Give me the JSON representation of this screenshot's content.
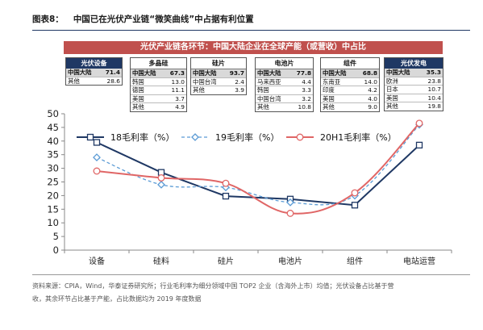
{
  "figure": {
    "label": "图表8：",
    "title": "中国已在光伏产业链“微笑曲线”中占据有利位置"
  },
  "banner": "光伏产业链各环节：中国大陆企业在全球产能（或营收）中占比",
  "share_boxes": [
    {
      "header": "光伏设备",
      "header_style": "blue",
      "rows": [
        {
          "name": "中国大陆",
          "value": "71.4"
        },
        {
          "name": "其他",
          "value": "28.6"
        }
      ]
    },
    {
      "header": "多晶硅",
      "header_style": "plain",
      "rows": [
        {
          "name": "中国大陆",
          "value": "67.3"
        },
        {
          "name": "韩国",
          "value": "13.0"
        },
        {
          "name": "德国",
          "value": "11.1"
        },
        {
          "name": "美国",
          "value": "3.7"
        },
        {
          "name": "其他",
          "value": "4.9"
        }
      ]
    },
    {
      "header": "硅片",
      "header_style": "plain",
      "rows": [
        {
          "name": "中国大陆",
          "value": "93.7"
        },
        {
          "name": "中国台湾",
          "value": "2.4"
        },
        {
          "name": "其他",
          "value": "3.9"
        }
      ]
    },
    {
      "header": "电池片",
      "header_style": "plain",
      "rows": [
        {
          "name": "中国大陆",
          "value": "77.8"
        },
        {
          "name": "马来西亚",
          "value": "4.4"
        },
        {
          "name": "韩国",
          "value": "3.3"
        },
        {
          "name": "中国台湾",
          "value": "3.2"
        },
        {
          "name": "其他",
          "value": "10.8"
        }
      ]
    },
    {
      "header": "组件",
      "header_style": "plain",
      "rows": [
        {
          "name": "中国大陆",
          "value": "68.8"
        },
        {
          "name": "东南亚",
          "value": "14.0"
        },
        {
          "name": "印度",
          "value": "4.2"
        },
        {
          "name": "美国",
          "value": "4.0"
        },
        {
          "name": "其他",
          "value": "9.0"
        }
      ]
    },
    {
      "header": "光伏发电",
      "header_style": "blue",
      "rows": [
        {
          "name": "中国大陆",
          "value": "35.3"
        },
        {
          "name": "欧洲",
          "value": "23.8"
        },
        {
          "name": "日本",
          "value": "10.7"
        },
        {
          "name": "美国",
          "value": "10.4"
        },
        {
          "name": "其他",
          "value": "19.8"
        }
      ]
    }
  ],
  "chart_data": {
    "type": "line",
    "categories": [
      "设备",
      "硅料",
      "硅片",
      "电池片",
      "组件",
      "电站运营"
    ],
    "ylim": [
      0,
      50
    ],
    "yticks": [
      0,
      5,
      10,
      15,
      20,
      25,
      30,
      35,
      40,
      45,
      50
    ],
    "grid": false,
    "legend_position": "top",
    "series": [
      {
        "name": "18毛利率（%）",
        "values": [
          39.5,
          28.5,
          19.8,
          18.7,
          16.5,
          38.5
        ],
        "color": "#1f3864",
        "style": "solid",
        "marker": "square",
        "smooth": false
      },
      {
        "name": "19毛利率（%）",
        "values": [
          34.0,
          24.0,
          23.0,
          17.5,
          20.0,
          46.0
        ],
        "color": "#5b9bd5",
        "style": "dashed",
        "marker": "diamond",
        "smooth": true
      },
      {
        "name": "20H1毛利率（%）",
        "values": [
          29.0,
          26.5,
          24.5,
          13.5,
          21.0,
          46.5
        ],
        "color": "#e06666",
        "style": "solid",
        "marker": "circle",
        "smooth": true
      }
    ]
  },
  "footer": {
    "source_line1": "资料来源：CPIA，Wind，华泰证券研究所；行业毛利率为细分领域中国 TOP2 企业（含海外上市）均值；光伏设备占比基于营",
    "source_line2": "收，其余环节占比基于产能，占比数据均为 2019 年度数据"
  }
}
